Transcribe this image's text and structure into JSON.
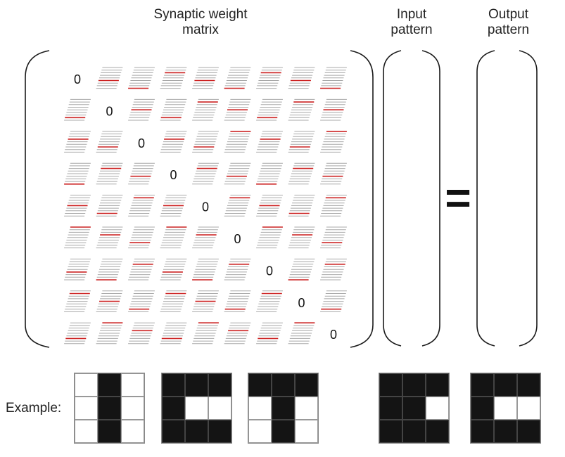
{
  "headers": {
    "matrix_line1": "Synaptic weight",
    "matrix_line2": "matrix",
    "input_line1": "Input",
    "input_line2": "pattern",
    "output_line1": "Output",
    "output_line2": "pattern"
  },
  "matrix": {
    "size": 9,
    "diagonal_label": "0",
    "cell_icon": "mini-slanted-pattern-icon",
    "highlight_color": "#cc2222",
    "line_color": "#a8a8a8"
  },
  "equals_sign": "=",
  "example_label": "Example:",
  "examples": [
    {
      "name": "stored-pattern-1",
      "cells": [
        0,
        1,
        0,
        0,
        1,
        0,
        0,
        1,
        0
      ]
    },
    {
      "name": "stored-pattern-2",
      "cells": [
        1,
        1,
        1,
        1,
        0,
        0,
        1,
        1,
        1
      ]
    },
    {
      "name": "stored-pattern-3",
      "cells": [
        1,
        1,
        1,
        0,
        1,
        0,
        0,
        1,
        0
      ]
    },
    {
      "name": "input-example",
      "cells": [
        1,
        1,
        1,
        1,
        1,
        0,
        1,
        1,
        1
      ]
    },
    {
      "name": "output-example",
      "cells": [
        1,
        1,
        1,
        1,
        0,
        0,
        1,
        1,
        1
      ]
    }
  ],
  "colors": {
    "on": "#141414",
    "off": "#ffffff",
    "grid": "#999999"
  }
}
